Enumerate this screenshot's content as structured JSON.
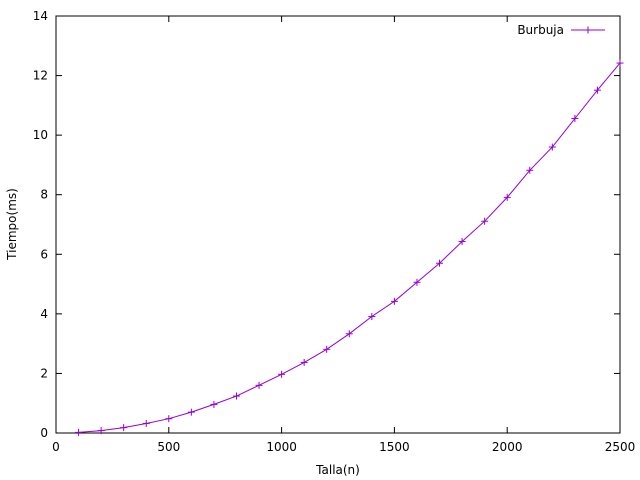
{
  "chart_data": {
    "type": "line",
    "title": "",
    "xlabel": "Talla(n)",
    "ylabel": "Tiempo(ms)",
    "xlim": [
      0,
      2500
    ],
    "ylim": [
      0,
      14
    ],
    "x_ticks": [
      0,
      500,
      1000,
      1500,
      2000,
      2500
    ],
    "y_ticks": [
      0,
      2,
      4,
      6,
      8,
      10,
      12,
      14
    ],
    "x_tick_labels": [
      "0",
      "500",
      "1000",
      "1500",
      "2000",
      "2500"
    ],
    "y_tick_labels": [
      "0",
      "2",
      "4",
      "6",
      "8",
      "10",
      "12",
      "14"
    ],
    "grid": false,
    "legend_position": "top-right",
    "series": [
      {
        "name": "Burbuja",
        "color": "#9400d3",
        "marker": "plus",
        "x": [
          100,
          200,
          300,
          400,
          500,
          600,
          700,
          800,
          900,
          1000,
          1100,
          1200,
          1300,
          1400,
          1500,
          1600,
          1700,
          1800,
          1900,
          2000,
          2100,
          2200,
          2300,
          2400,
          2500
        ],
        "y": [
          0.02,
          0.08,
          0.18,
          0.32,
          0.48,
          0.7,
          0.96,
          1.24,
          1.6,
          1.97,
          2.37,
          2.81,
          3.33,
          3.91,
          4.42,
          5.06,
          5.7,
          6.43,
          7.11,
          7.91,
          8.82,
          9.6,
          10.56,
          11.51,
          12.42
        ]
      }
    ]
  }
}
